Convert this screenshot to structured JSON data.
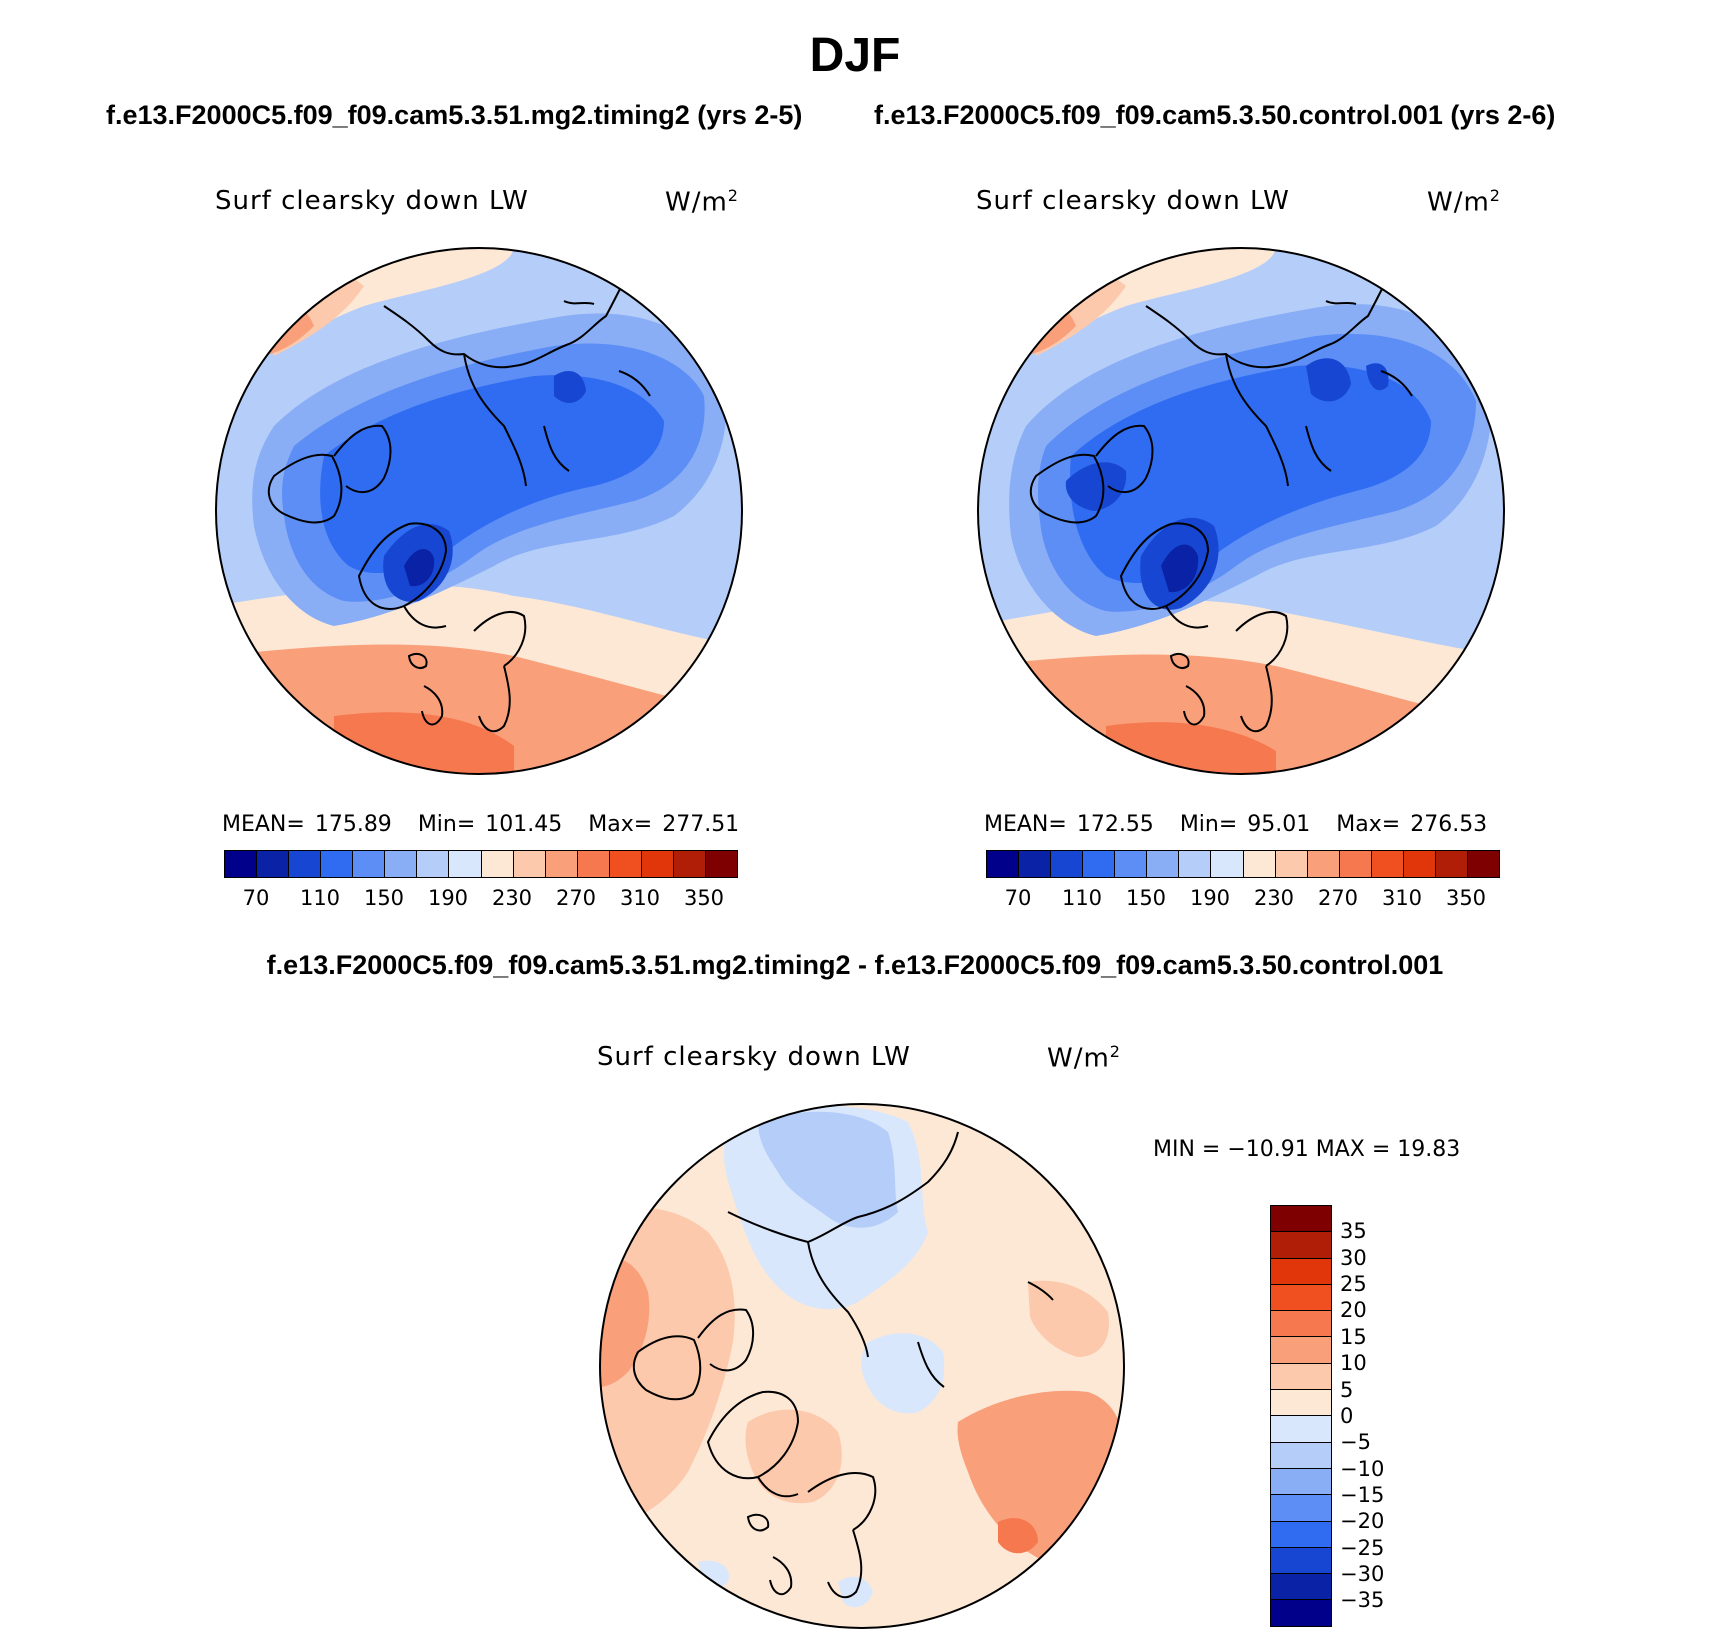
{
  "title": "DJF",
  "panels": {
    "left": {
      "case_label": "f.e13.F2000C5.f09_f09.cam5.3.51.mg2.timing2 (yrs 2-5)",
      "variable": "Surf clearsky down LW",
      "units": "W/m",
      "units_exp": "2",
      "mean_label": "MEAN=",
      "mean": "175.89",
      "min_label": "Min=",
      "min": "101.45",
      "max_label": "Max=",
      "max": "277.51"
    },
    "right": {
      "case_label": "f.e13.F2000C5.f09_f09.cam5.3.50.control.001 (yrs 2-6)",
      "variable": "Surf clearsky down LW",
      "units": "W/m",
      "units_exp": "2",
      "mean_label": "MEAN=",
      "mean": "172.55",
      "min_label": "Min=",
      "min": "95.01",
      "max_label": "Max=",
      "max": "276.53"
    },
    "diff": {
      "title": "f.e13.F2000C5.f09_f09.cam5.3.51.mg2.timing2 - f.e13.F2000C5.f09_f09.cam5.3.50.control.001",
      "variable": "Surf clearsky down LW",
      "units": "W/m",
      "units_exp": "2",
      "minmax_text": "MIN = −10.91 MAX =  19.83"
    }
  },
  "colorbar_abs": {
    "colors": [
      "#00008b",
      "#0a23a6",
      "#1747d2",
      "#2f6cf2",
      "#5c8ef5",
      "#89aef6",
      "#b5cdf9",
      "#d8e7fb",
      "#fde8d6",
      "#fcc9ac",
      "#f9a07b",
      "#f6784f",
      "#f0501f",
      "#e0360a",
      "#b01e07",
      "#7f0000"
    ],
    "ticks": [
      "70",
      "110",
      "150",
      "190",
      "230",
      "270",
      "310",
      "350"
    ]
  },
  "colorbar_diff": {
    "colors": [
      "#7f0000",
      "#b01e07",
      "#e0360a",
      "#f0501f",
      "#f6784f",
      "#f9a07b",
      "#fcc9ac",
      "#fde8d6",
      "#d8e7fb",
      "#b5cdf9",
      "#89aef6",
      "#5c8ef5",
      "#2f6cf2",
      "#1747d2",
      "#0a23a6",
      "#00008b"
    ],
    "ticks": [
      "35",
      "30",
      "25",
      "20",
      "15",
      "10",
      "5",
      "0",
      "−5",
      "−10",
      "−15",
      "−20",
      "−25",
      "−30",
      "−35"
    ]
  }
}
